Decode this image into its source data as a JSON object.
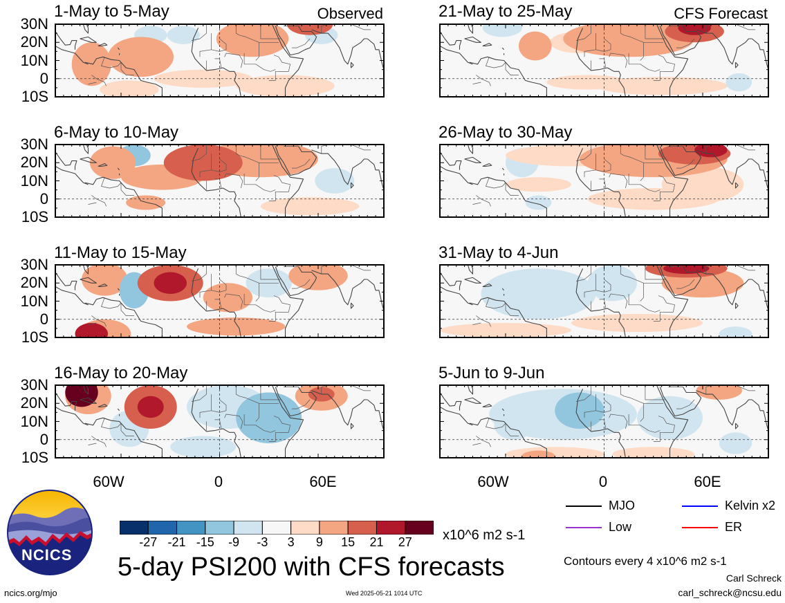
{
  "columns": [
    {
      "tag": "Observed",
      "panels": [
        {
          "title": "1-May to 5-May",
          "blobs": [
            [
              -78,
              8,
              12,
              12,
              9
            ],
            [
              -48,
              12,
              20,
              11,
              9
            ],
            [
              -22,
              24,
              10,
              5,
              -3
            ],
            [
              -42,
              24,
              10,
              5,
              -3
            ],
            [
              20,
              22,
              22,
              10,
              9
            ],
            [
              55,
              30,
              14,
              6,
              15
            ],
            [
              62,
              24,
              10,
              5,
              -3
            ],
            [
              40,
              -4,
              30,
              6,
              3
            ],
            [
              -10,
              0,
              30,
              5,
              3
            ],
            [
              -55,
              -6,
              18,
              5,
              3
            ]
          ]
        },
        {
          "title": "6-May to 10-May",
          "blobs": [
            [
              -52,
              24,
              10,
              6,
              -9
            ],
            [
              -10,
              20,
              24,
              10,
              15
            ],
            [
              25,
              22,
              35,
              10,
              9
            ],
            [
              -35,
              12,
              25,
              7,
              9
            ],
            [
              -65,
              20,
              14,
              9,
              9
            ],
            [
              -45,
              -2,
              12,
              4,
              9
            ],
            [
              55,
              -4,
              30,
              5,
              3
            ],
            [
              70,
              10,
              12,
              7,
              -3
            ]
          ]
        },
        {
          "title": "11-May to 15-May",
          "blobs": [
            [
              -70,
              22,
              14,
              9,
              9
            ],
            [
              -52,
              16,
              9,
              10,
              -9
            ],
            [
              -30,
              20,
              20,
              10,
              15
            ],
            [
              -30,
              20,
              10,
              6,
              21
            ],
            [
              -78,
              -8,
              10,
              6,
              21
            ],
            [
              -70,
              -8,
              16,
              8,
              9
            ],
            [
              30,
              20,
              14,
              8,
              -3
            ],
            [
              60,
              24,
              18,
              8,
              9
            ],
            [
              10,
              -4,
              30,
              5,
              9
            ],
            [
              5,
              12,
              15,
              8,
              9
            ]
          ]
        },
        {
          "title": "16-May to 20-May",
          "blobs": [
            [
              -84,
              26,
              10,
              8,
              27
            ],
            [
              -80,
              24,
              14,
              10,
              9
            ],
            [
              -42,
              18,
              16,
              12,
              15
            ],
            [
              -42,
              18,
              8,
              6,
              21
            ],
            [
              5,
              18,
              25,
              12,
              -3
            ],
            [
              30,
              12,
              20,
              14,
              -9
            ],
            [
              -55,
              6,
              12,
              10,
              -3
            ],
            [
              62,
              24,
              16,
              8,
              9
            ],
            [
              62,
              25,
              8,
              4,
              15
            ],
            [
              -10,
              -4,
              20,
              6,
              -3
            ]
          ]
        }
      ]
    },
    {
      "tag": "CFS Forecast",
      "panels": [
        {
          "title": "21-May to 25-May",
          "blobs": [
            [
              -42,
              18,
              10,
              8,
              9
            ],
            [
              15,
              22,
              40,
              10,
              9
            ],
            [
              55,
              26,
              18,
              6,
              15
            ],
            [
              55,
              28,
              10,
              4,
              21
            ],
            [
              -62,
              28,
              12,
              5,
              -3
            ],
            [
              35,
              -4,
              40,
              5,
              3
            ],
            [
              -10,
              -2,
              25,
              4,
              3
            ],
            [
              82,
              -2,
              8,
              5,
              -3
            ],
            [
              -15,
              20,
              18,
              6,
              3
            ]
          ]
        },
        {
          "title": "26-May to 30-May",
          "blobs": [
            [
              -50,
              20,
              10,
              8,
              -3
            ],
            [
              30,
              22,
              45,
              10,
              9
            ],
            [
              55,
              25,
              22,
              6,
              15
            ],
            [
              65,
              27,
              10,
              4,
              21
            ],
            [
              -20,
              24,
              40,
              6,
              3
            ],
            [
              60,
              8,
              25,
              10,
              3
            ],
            [
              -40,
              8,
              20,
              4,
              3
            ],
            [
              -40,
              -2,
              8,
              4,
              -3
            ],
            [
              30,
              0,
              40,
              6,
              3
            ]
          ]
        },
        {
          "title": "31-May to 4-Jun",
          "blobs": [
            [
              -40,
              14,
              35,
              14,
              -3
            ],
            [
              5,
              20,
              15,
              10,
              -3
            ],
            [
              50,
              28,
              25,
              5,
              15
            ],
            [
              50,
              28,
              14,
              3,
              21
            ],
            [
              60,
              20,
              25,
              8,
              9
            ],
            [
              20,
              -2,
              40,
              5,
              3
            ],
            [
              -60,
              -6,
              40,
              4,
              3
            ],
            [
              80,
              -8,
              10,
              4,
              -3
            ]
          ]
        },
        {
          "title": "5-Jun to 9-Jun",
          "blobs": [
            [
              -25,
              14,
              45,
              14,
              -3
            ],
            [
              -15,
              16,
              15,
              10,
              -9
            ],
            [
              -55,
              8,
              12,
              8,
              -3
            ],
            [
              40,
              12,
              20,
              12,
              -3
            ],
            [
              70,
              27,
              14,
              5,
              9
            ],
            [
              -30,
              -8,
              30,
              4,
              3
            ],
            [
              -40,
              -9,
              10,
              3,
              9
            ],
            [
              30,
              -8,
              25,
              4,
              3
            ],
            [
              80,
              -2,
              10,
              6,
              -3
            ]
          ]
        }
      ]
    }
  ],
  "lat_labels": [
    "30N",
    "20N",
    "10N",
    "0",
    "10S"
  ],
  "lon_labels": [
    "60W",
    "0",
    "60E"
  ],
  "colorbar": {
    "colors": [
      "#08306b",
      "#2166ac",
      "#4393c3",
      "#92c5de",
      "#d1e5f0",
      "#f7f7f7",
      "#fddbc7",
      "#f4a582",
      "#d6604d",
      "#b2182b",
      "#67001f"
    ],
    "labels": [
      "-27",
      "-21",
      "-15",
      "-9",
      "-3",
      "3",
      "9",
      "15",
      "21",
      "27"
    ],
    "units": "x10^6 m2 s-1"
  },
  "legend": [
    {
      "label": "MJO",
      "color": "#000000"
    },
    {
      "label": "Kelvin x2",
      "color": "#0000ff"
    },
    {
      "label": "Low",
      "color": "#9932cc"
    },
    {
      "label": "ER",
      "color": "#ff0000"
    }
  ],
  "main_title": "5-day PSI200 with CFS forecasts",
  "contours_note": "Contours every 4 x10^6 m2 s-1",
  "author": "Carl Schreck",
  "email": "carl_schreck@ncsu.edu",
  "site": "ncics.org/mjo",
  "timestamp": "Wed 2025-05-21 1014 UTC",
  "logo_text": "NCICS"
}
